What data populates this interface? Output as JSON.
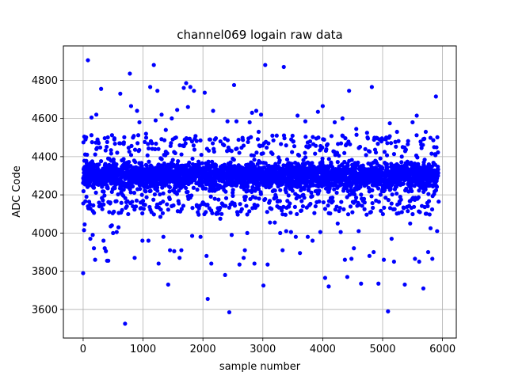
{
  "chart_data": {
    "type": "scatter",
    "title": "channel069 logain raw data",
    "xlabel": "sample number",
    "ylabel": "ADC Code",
    "xlim": [
      -330,
      6230
    ],
    "ylim": [
      3450,
      4980
    ],
    "xticks": [
      0,
      1000,
      2000,
      3000,
      4000,
      5000,
      6000
    ],
    "yticks": [
      3600,
      3800,
      4000,
      4200,
      4400,
      4600,
      4800
    ],
    "grid": true,
    "marker_color": "#0000ff",
    "sample_count": 5930,
    "band": {
      "y_min": 4205,
      "y_max": 4405,
      "center": 4300
    },
    "series": [
      {
        "name": "",
        "points": [
          [
            0,
            3790
          ],
          [
            5,
            4475
          ],
          [
            15,
            4015
          ],
          [
            25,
            4045
          ],
          [
            40,
            4490
          ],
          [
            55,
            4190
          ],
          [
            80,
            4905
          ],
          [
            100,
            4250
          ],
          [
            120,
            3970
          ],
          [
            140,
            4605
          ],
          [
            160,
            3990
          ],
          [
            180,
            3920
          ],
          [
            200,
            3860
          ],
          [
            220,
            4620
          ],
          [
            240,
            4490
          ],
          [
            270,
            4140
          ],
          [
            300,
            4755
          ],
          [
            320,
            4125
          ],
          [
            340,
            3960
          ],
          [
            360,
            3920
          ],
          [
            380,
            3905
          ],
          [
            400,
            3855
          ],
          [
            420,
            3855
          ],
          [
            450,
            4155
          ],
          [
            460,
            4035
          ],
          [
            480,
            4040
          ],
          [
            500,
            4000
          ],
          [
            520,
            4490
          ],
          [
            560,
            4005
          ],
          [
            590,
            4030
          ],
          [
            620,
            4730
          ],
          [
            650,
            4120
          ],
          [
            680,
            4475
          ],
          [
            700,
            3525
          ],
          [
            730,
            4140
          ],
          [
            780,
            4835
          ],
          [
            800,
            4665
          ],
          [
            830,
            4140
          ],
          [
            860,
            3870
          ],
          [
            900,
            4640
          ],
          [
            940,
            4580
          ],
          [
            960,
            4160
          ],
          [
            990,
            3960
          ],
          [
            1010,
            4150
          ],
          [
            1050,
            4520
          ],
          [
            1090,
            3960
          ],
          [
            1120,
            4765
          ],
          [
            1150,
            4470
          ],
          [
            1180,
            4880
          ],
          [
            1210,
            4590
          ],
          [
            1240,
            4745
          ],
          [
            1260,
            3840
          ],
          [
            1290,
            4085
          ],
          [
            1310,
            4620
          ],
          [
            1340,
            3980
          ],
          [
            1380,
            4540
          ],
          [
            1420,
            3730
          ],
          [
            1450,
            3910
          ],
          [
            1480,
            4600
          ],
          [
            1520,
            3905
          ],
          [
            1570,
            4645
          ],
          [
            1610,
            3870
          ],
          [
            1640,
            3910
          ],
          [
            1680,
            4760
          ],
          [
            1720,
            4785
          ],
          [
            1750,
            4660
          ],
          [
            1790,
            4765
          ],
          [
            1820,
            3985
          ],
          [
            1850,
            4745
          ],
          [
            1900,
            4140
          ],
          [
            1960,
            3980
          ],
          [
            2000,
            4160
          ],
          [
            2030,
            4735
          ],
          [
            2060,
            3880
          ],
          [
            2080,
            3655
          ],
          [
            2110,
            4490
          ],
          [
            2140,
            3840
          ],
          [
            2170,
            4640
          ],
          [
            2200,
            4490
          ],
          [
            2250,
            4130
          ],
          [
            2290,
            4075
          ],
          [
            2330,
            4150
          ],
          [
            2370,
            3780
          ],
          [
            2410,
            4585
          ],
          [
            2440,
            3585
          ],
          [
            2480,
            3990
          ],
          [
            2520,
            4775
          ],
          [
            2560,
            4585
          ],
          [
            2610,
            3835
          ],
          [
            2650,
            4125
          ],
          [
            2680,
            3870
          ],
          [
            2700,
            3910
          ],
          [
            2740,
            4000
          ],
          [
            2780,
            4580
          ],
          [
            2820,
            4630
          ],
          [
            2860,
            3840
          ],
          [
            2890,
            4640
          ],
          [
            2930,
            4530
          ],
          [
            2970,
            4620
          ],
          [
            3010,
            3725
          ],
          [
            3040,
            4880
          ],
          [
            3080,
            3835
          ],
          [
            3120,
            4055
          ],
          [
            3160,
            4510
          ],
          [
            3200,
            4055
          ],
          [
            3240,
            4140
          ],
          [
            3290,
            4000
          ],
          [
            3330,
            3910
          ],
          [
            3350,
            4870
          ],
          [
            3390,
            4010
          ],
          [
            3430,
            4140
          ],
          [
            3470,
            4005
          ],
          [
            3510,
            4480
          ],
          [
            3550,
            3980
          ],
          [
            3580,
            4615
          ],
          [
            3620,
            3895
          ],
          [
            3670,
            4140
          ],
          [
            3710,
            4585
          ],
          [
            3750,
            3980
          ],
          [
            3790,
            4480
          ],
          [
            3830,
            3960
          ],
          [
            3880,
            4140
          ],
          [
            3920,
            4635
          ],
          [
            3960,
            4005
          ],
          [
            4000,
            4665
          ],
          [
            4040,
            3765
          ],
          [
            4080,
            4465
          ],
          [
            4100,
            3720
          ],
          [
            4150,
            4160
          ],
          [
            4200,
            4580
          ],
          [
            4250,
            4050
          ],
          [
            4300,
            4005
          ],
          [
            4330,
            4600
          ],
          [
            4370,
            3860
          ],
          [
            4410,
            3770
          ],
          [
            4440,
            4745
          ],
          [
            4480,
            3865
          ],
          [
            4520,
            3920
          ],
          [
            4560,
            4545
          ],
          [
            4600,
            4010
          ],
          [
            4640,
            3735
          ],
          [
            4700,
            4160
          ],
          [
            4740,
            4525
          ],
          [
            4780,
            3880
          ],
          [
            4820,
            4765
          ],
          [
            4850,
            3900
          ],
          [
            4890,
            4170
          ],
          [
            4930,
            3735
          ],
          [
            4980,
            4480
          ],
          [
            5020,
            3860
          ],
          [
            5060,
            4500
          ],
          [
            5090,
            3590
          ],
          [
            5120,
            4575
          ],
          [
            5150,
            3970
          ],
          [
            5190,
            3850
          ],
          [
            5240,
            4530
          ],
          [
            5280,
            4155
          ],
          [
            5320,
            4400
          ],
          [
            5370,
            3730
          ],
          [
            5420,
            4465
          ],
          [
            5460,
            4050
          ],
          [
            5500,
            4580
          ],
          [
            5540,
            3865
          ],
          [
            5570,
            4615
          ],
          [
            5610,
            3850
          ],
          [
            5650,
            4445
          ],
          [
            5680,
            3710
          ],
          [
            5720,
            4530
          ],
          [
            5760,
            3900
          ],
          [
            5800,
            4025
          ],
          [
            5830,
            3865
          ],
          [
            5860,
            4450
          ],
          [
            5890,
            4715
          ],
          [
            5910,
            4010
          ]
        ]
      }
    ]
  }
}
